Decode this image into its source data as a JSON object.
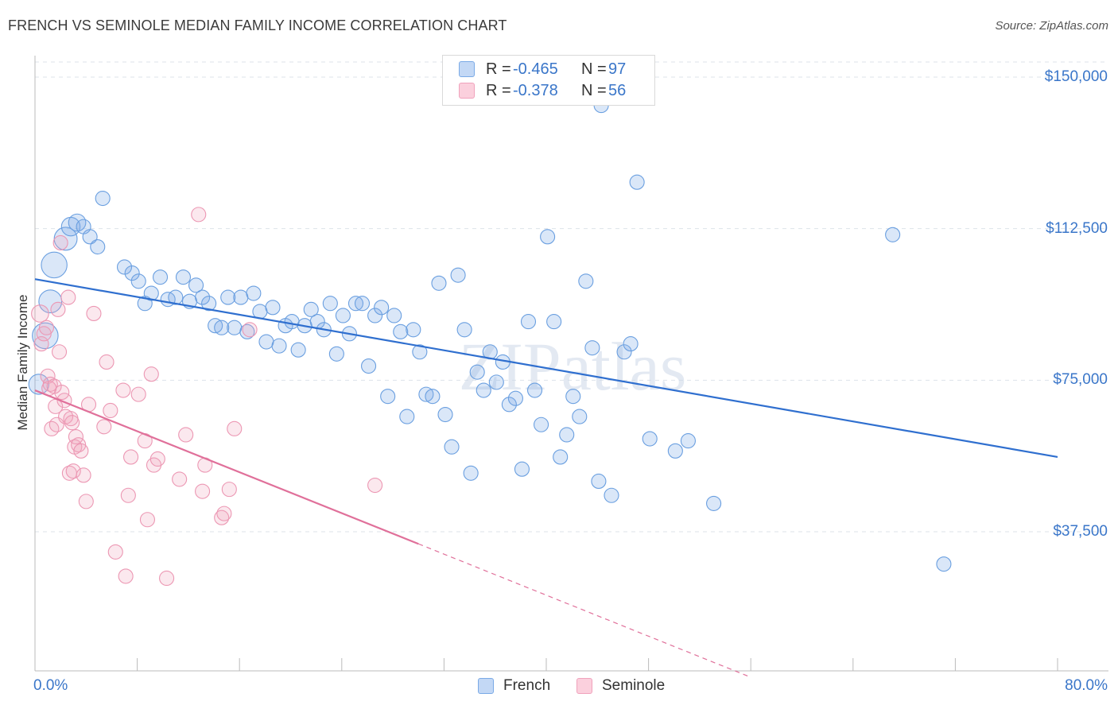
{
  "title": "FRENCH VS SEMINOLE MEDIAN FAMILY INCOME CORRELATION CHART",
  "source": "Source: ZipAtlas.com",
  "watermark": "ZIPatlas",
  "legend_top": [
    {
      "r_label": "R =",
      "r_value": "-0.465",
      "n_label": "N =",
      "n_value": "97"
    },
    {
      "r_label": "R =",
      "r_value": "-0.378",
      "n_label": "N =",
      "n_value": "56"
    }
  ],
  "chart_data": {
    "type": "scatter",
    "title": "FRENCH VS SEMINOLE MEDIAN FAMILY INCOME CORRELATION CHART",
    "xlabel": "",
    "ylabel": "Median Family Income",
    "xlim": [
      0,
      80
    ],
    "ylim": [
      0,
      155000
    ],
    "x_tick_labels": [
      "0.0%",
      "80.0%"
    ],
    "y_tick_labels": [
      "$150,000",
      "$112,500",
      "$75,000",
      "$37,500"
    ],
    "y_ticks": [
      150000,
      112500,
      75000,
      37500
    ],
    "grid": true,
    "legend_position": "bottom-center",
    "colors": {
      "French": "#7aaae6",
      "Seminole": "#f0a2bc",
      "french_line": "#2f6fcf",
      "seminole_line": "#e0709a",
      "axis_text": "#3a76c9"
    },
    "series": [
      {
        "name": "French",
        "r": -0.465,
        "n": 97,
        "trend": {
          "x": [
            0,
            80
          ],
          "y": [
            100000,
            56000
          ]
        },
        "points": [
          [
            1.5,
            103500,
            18
          ],
          [
            1.2,
            94500,
            16
          ],
          [
            0.8,
            86000,
            18
          ],
          [
            0.3,
            74000,
            14
          ],
          [
            2.4,
            110000,
            16
          ],
          [
            2.8,
            113000,
            13
          ],
          [
            3.3,
            114000,
            12
          ],
          [
            3.8,
            113000,
            10
          ],
          [
            4.3,
            110500,
            10
          ],
          [
            4.9,
            108000,
            10
          ],
          [
            5.3,
            120000,
            10
          ],
          [
            7.0,
            103000,
            10
          ],
          [
            7.6,
            101500,
            10
          ],
          [
            8.1,
            99500,
            10
          ],
          [
            8.6,
            94000,
            10
          ],
          [
            9.1,
            96500,
            10
          ],
          [
            9.8,
            100500,
            10
          ],
          [
            10.4,
            95000,
            10
          ],
          [
            11.0,
            95500,
            10
          ],
          [
            11.6,
            100500,
            10
          ],
          [
            12.1,
            94500,
            10
          ],
          [
            12.6,
            98500,
            10
          ],
          [
            13.1,
            95500,
            10
          ],
          [
            13.6,
            94000,
            10
          ],
          [
            14.1,
            88500,
            10
          ],
          [
            14.6,
            88000,
            10
          ],
          [
            15.1,
            95500,
            10
          ],
          [
            15.6,
            88000,
            10
          ],
          [
            16.1,
            95500,
            10
          ],
          [
            16.6,
            87000,
            10
          ],
          [
            17.1,
            96500,
            10
          ],
          [
            17.6,
            92000,
            10
          ],
          [
            18.1,
            84500,
            10
          ],
          [
            18.6,
            93000,
            10
          ],
          [
            19.1,
            83500,
            10
          ],
          [
            19.6,
            88500,
            10
          ],
          [
            20.1,
            89500,
            10
          ],
          [
            20.6,
            82500,
            10
          ],
          [
            21.1,
            88500,
            10
          ],
          [
            21.6,
            92500,
            10
          ],
          [
            22.1,
            89500,
            10
          ],
          [
            22.6,
            87500,
            10
          ],
          [
            23.1,
            94000,
            10
          ],
          [
            23.6,
            81500,
            10
          ],
          [
            24.1,
            91000,
            10
          ],
          [
            24.6,
            86500,
            10
          ],
          [
            25.1,
            94000,
            10
          ],
          [
            25.6,
            94000,
            10
          ],
          [
            26.1,
            78500,
            10
          ],
          [
            26.6,
            91000,
            10
          ],
          [
            27.1,
            93000,
            10
          ],
          [
            27.6,
            71000,
            10
          ],
          [
            28.1,
            91000,
            10
          ],
          [
            28.6,
            87000,
            10
          ],
          [
            29.1,
            66000,
            10
          ],
          [
            29.6,
            87500,
            10
          ],
          [
            30.1,
            82000,
            10
          ],
          [
            30.6,
            71500,
            10
          ],
          [
            31.1,
            71000,
            10
          ],
          [
            31.6,
            99000,
            10
          ],
          [
            32.1,
            66500,
            10
          ],
          [
            32.6,
            58500,
            10
          ],
          [
            33.1,
            101000,
            10
          ],
          [
            33.6,
            87500,
            10
          ],
          [
            34.1,
            52000,
            10
          ],
          [
            34.6,
            77000,
            10
          ],
          [
            35.1,
            72500,
            10
          ],
          [
            35.6,
            82000,
            10
          ],
          [
            36.1,
            74500,
            10
          ],
          [
            36.6,
            79500,
            10
          ],
          [
            37.1,
            69000,
            10
          ],
          [
            37.6,
            70500,
            10
          ],
          [
            38.1,
            53000,
            10
          ],
          [
            38.6,
            89500,
            10
          ],
          [
            39.1,
            72500,
            10
          ],
          [
            39.6,
            64000,
            10
          ],
          [
            40.1,
            110500,
            10
          ],
          [
            40.6,
            89500,
            10
          ],
          [
            41.1,
            56000,
            10
          ],
          [
            41.6,
            61500,
            10
          ],
          [
            42.1,
            71000,
            10
          ],
          [
            42.6,
            66000,
            10
          ],
          [
            43.1,
            99500,
            10
          ],
          [
            43.6,
            83000,
            10
          ],
          [
            44.1,
            50000,
            10
          ],
          [
            45.1,
            46500,
            10
          ],
          [
            46.1,
            82000,
            10
          ],
          [
            46.6,
            84000,
            10
          ],
          [
            47.1,
            124000,
            10
          ],
          [
            48.1,
            60500,
            10
          ],
          [
            50.1,
            57500,
            10
          ],
          [
            51.1,
            60000,
            10
          ],
          [
            53.1,
            44500,
            10
          ],
          [
            67.1,
            111000,
            10
          ],
          [
            71.1,
            29500,
            10
          ],
          [
            44.3,
            143000,
            10
          ]
        ]
      },
      {
        "name": "Seminole",
        "r": -0.378,
        "n": 56,
        "trend": {
          "x": [
            0,
            30
          ],
          "y": [
            72500,
            34500
          ]
        },
        "trend_dashed": {
          "x": [
            30,
            56
          ],
          "y": [
            34500,
            1500
          ]
        },
        "points": [
          [
            0.4,
            91500,
            12
          ],
          [
            0.5,
            84000,
            10
          ],
          [
            0.7,
            86500,
            10
          ],
          [
            0.9,
            88000,
            10
          ],
          [
            1.0,
            76000,
            10
          ],
          [
            1.2,
            74000,
            10
          ],
          [
            1.3,
            63000,
            10
          ],
          [
            1.5,
            73500,
            10
          ],
          [
            1.6,
            68500,
            10
          ],
          [
            1.7,
            64000,
            10
          ],
          [
            1.8,
            92500,
            10
          ],
          [
            1.9,
            82000,
            10
          ],
          [
            2.0,
            109000,
            10
          ],
          [
            2.1,
            72000,
            10
          ],
          [
            2.3,
            70000,
            10
          ],
          [
            2.4,
            66000,
            10
          ],
          [
            2.6,
            95500,
            10
          ],
          [
            2.7,
            52000,
            10
          ],
          [
            2.8,
            65500,
            10
          ],
          [
            2.9,
            64500,
            10
          ],
          [
            3.0,
            52500,
            10
          ],
          [
            3.1,
            58500,
            10
          ],
          [
            3.2,
            61000,
            10
          ],
          [
            3.4,
            59000,
            10
          ],
          [
            3.6,
            57500,
            10
          ],
          [
            3.8,
            51500,
            10
          ],
          [
            4.0,
            45000,
            10
          ],
          [
            4.2,
            69000,
            10
          ],
          [
            4.6,
            91500,
            10
          ],
          [
            5.4,
            63500,
            10
          ],
          [
            5.6,
            79500,
            10
          ],
          [
            5.9,
            67500,
            10
          ],
          [
            6.3,
            32500,
            10
          ],
          [
            6.9,
            72500,
            10
          ],
          [
            7.1,
            26500,
            10
          ],
          [
            7.3,
            46500,
            10
          ],
          [
            7.5,
            56000,
            10
          ],
          [
            8.1,
            71500,
            10
          ],
          [
            8.6,
            60000,
            10
          ],
          [
            8.8,
            40500,
            10
          ],
          [
            9.1,
            76500,
            10
          ],
          [
            9.3,
            54000,
            10
          ],
          [
            9.6,
            55500,
            10
          ],
          [
            10.3,
            26000,
            10
          ],
          [
            11.3,
            50500,
            10
          ],
          [
            11.8,
            61500,
            10
          ],
          [
            12.8,
            116000,
            10
          ],
          [
            13.1,
            47500,
            10
          ],
          [
            13.3,
            54000,
            10
          ],
          [
            14.6,
            41000,
            10
          ],
          [
            14.8,
            42000,
            10
          ],
          [
            15.2,
            48000,
            10
          ],
          [
            15.6,
            63000,
            10
          ],
          [
            16.8,
            87500,
            10
          ],
          [
            26.6,
            49000,
            10
          ],
          [
            1.1,
            73000,
            10
          ]
        ]
      }
    ]
  }
}
